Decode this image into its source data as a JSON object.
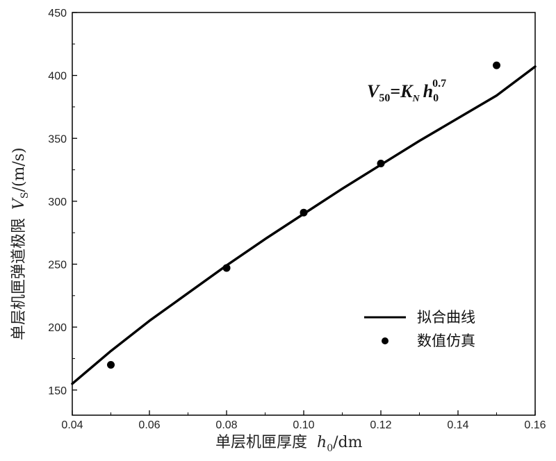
{
  "chart_data": {
    "type": "scatter",
    "xlabel": {
      "main": "单层机匣厚度",
      "var": "h",
      "sub": "0",
      "unit": "/dm"
    },
    "ylabel": {
      "main": "单层机匣弹道极限",
      "var": "V",
      "sub": "S",
      "unit": "/(m/s)"
    },
    "xlim": [
      0.04,
      0.16
    ],
    "ylim": [
      130,
      450
    ],
    "xticks": [
      0.04,
      0.06,
      0.08,
      0.1,
      0.12,
      0.14,
      0.16
    ],
    "xtick_labels": [
      "0.04",
      "0.06",
      "0.08",
      "0.10",
      "0.12",
      "0.14",
      "0.16"
    ],
    "yticks": [
      150,
      200,
      250,
      300,
      350,
      400,
      450
    ],
    "ytick_labels": [
      "150",
      "200",
      "250",
      "300",
      "350",
      "400",
      "450"
    ],
    "grid": false,
    "legend_position": "bottom-right",
    "series": [
      {
        "name": "拟合曲线",
        "kind": "line",
        "color": "#000000",
        "x": [
          0.04,
          0.05,
          0.06,
          0.07,
          0.08,
          0.09,
          0.1,
          0.11,
          0.12,
          0.13,
          0.14,
          0.15,
          0.16
        ],
        "y": [
          155,
          181,
          205,
          227,
          249,
          270,
          290,
          310,
          329,
          348,
          366,
          384,
          407
        ]
      },
      {
        "name": "数值仿真",
        "kind": "scatter",
        "color": "#000000",
        "x": [
          0.05,
          0.08,
          0.1,
          0.12,
          0.15
        ],
        "y": [
          170,
          247,
          291,
          330,
          408
        ]
      }
    ],
    "annotation": {
      "V": "V",
      "v_sub": "50",
      "eq": "=",
      "K": "K",
      "k_sub": "N",
      "h": "h",
      "h_sub": "0",
      "exp": "0.7"
    }
  }
}
